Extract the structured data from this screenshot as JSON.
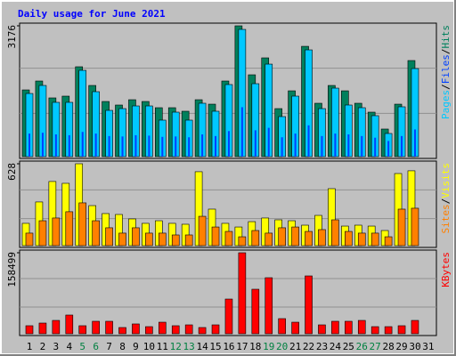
{
  "chart_data": {
    "type": "bar",
    "title": "Daily usage for June 2021",
    "legend_separator": "/",
    "categories": [
      "1",
      "2",
      "3",
      "4",
      "5",
      "6",
      "7",
      "8",
      "9",
      "10",
      "11",
      "12",
      "13",
      "14",
      "15",
      "16",
      "17",
      "18",
      "19",
      "20",
      "21",
      "22",
      "23",
      "24",
      "25",
      "26",
      "27",
      "28",
      "29",
      "30",
      "31"
    ],
    "category_colors": [
      "#000000",
      "#000000",
      "#000000",
      "#000000",
      "#008040",
      "#008040",
      "#000000",
      "#000000",
      "#000000",
      "#000000",
      "#000000",
      "#008040",
      "#008040",
      "#000000",
      "#000000",
      "#000000",
      "#000000",
      "#000000",
      "#008040",
      "#008040",
      "#000000",
      "#000000",
      "#000000",
      "#000000",
      "#000000",
      "#008040",
      "#008040",
      "#000000",
      "#000000",
      "#000000",
      "#000000"
    ],
    "panels": [
      {
        "ylim": [
          0,
          3176
        ],
        "yticks": [
          3176
        ],
        "series": [
          {
            "name": "Hits",
            "color": "#00805c",
            "values": [
              1620,
              1836,
              1426,
              1469,
              2182,
              1728,
              1339,
              1253,
              1382,
              1339,
              1188,
              1188,
              1102,
              1382,
              1274,
              1836,
              3176,
              1987,
              2398,
              1166,
              1598,
              2678,
              1296,
              1728,
              1598,
              1296,
              1080,
              670,
              1274,
              2333,
              null
            ]
          },
          {
            "name": "Pages",
            "color": "#00c8ff",
            "values": [
              1533,
              1728,
              1318,
              1318,
              2095,
              1577,
              1123,
              1166,
              1231,
              1231,
              886,
              1080,
              886,
              1296,
              1102,
              1750,
              3089,
              1771,
              2246,
              972,
              1469,
              2592,
              1166,
              1663,
              1253,
              1188,
              994,
              562,
              1210,
              2138,
              null
            ]
          },
          {
            "name": "Files",
            "color": "#0040ff",
            "values": [
              560,
              580,
              540,
              520,
              600,
              560,
              500,
              490,
              520,
              510,
              480,
              490,
              470,
              540,
              500,
              620,
              1200,
              640,
              700,
              470,
              560,
              760,
              500,
              560,
              540,
              500,
              460,
              380,
              500,
              660,
              null
            ]
          }
        ]
      },
      {
        "ylim": [
          0,
          628
        ],
        "yticks": [
          628
        ],
        "series": [
          {
            "name": "Visits",
            "color": "#ffff00",
            "values": [
              171,
              335,
              492,
              478,
              628,
              307,
              246,
              239,
              205,
              171,
              191,
              171,
              164,
              567,
              280,
              171,
              143,
              184,
              212,
              198,
              191,
              157,
              232,
              437,
              150,
              157,
              150,
              116,
              553,
              574,
              null
            ]
          },
          {
            "name": "Sites",
            "color": "#ff8000",
            "values": [
              96,
              191,
              212,
              260,
              328,
              191,
              137,
              96,
              137,
              96,
              96,
              82,
              82,
              225,
              143,
              109,
              68,
              116,
              96,
              137,
              143,
              109,
              123,
              198,
              109,
              96,
              96,
              68,
              280,
              287,
              null
            ]
          }
        ]
      },
      {
        "ylim": [
          0,
          158499
        ],
        "yticks": [
          158499
        ],
        "series": [
          {
            "name": "KBytes",
            "color": "#ff0000",
            "values": [
              15700,
              20900,
              26100,
              36600,
              15700,
              24400,
              24400,
              12200,
              19200,
              13900,
              22600,
              15700,
              17400,
              12200,
              17400,
              67900,
              158499,
              87100,
              109700,
              29600,
              22600,
              113200,
              17400,
              24400,
              24400,
              26100,
              13900,
              13900,
              15700,
              26100,
              null
            ]
          }
        ]
      }
    ]
  }
}
